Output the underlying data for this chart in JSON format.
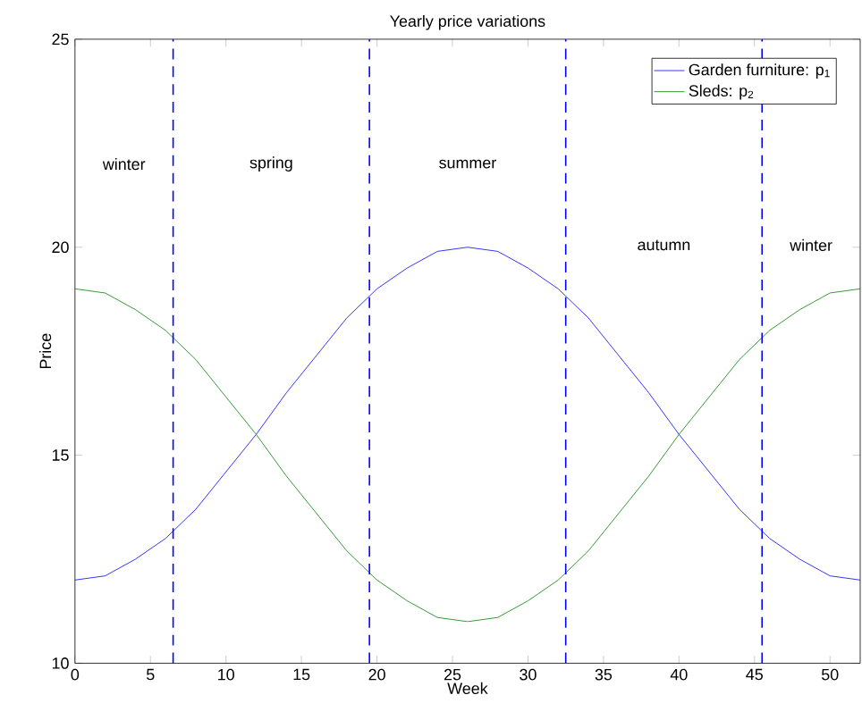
{
  "chart_data": {
    "type": "line",
    "title": "Yearly price variations",
    "xlabel": "Week",
    "ylabel": "Price",
    "x": [
      0,
      2,
      4,
      6,
      8,
      10,
      12,
      14,
      16,
      18,
      20,
      22,
      24,
      26,
      28,
      30,
      32,
      34,
      36,
      38,
      40,
      42,
      44,
      46,
      48,
      50,
      52
    ],
    "series": [
      {
        "name": "Garden furniture: p$_{1}$",
        "color": "#0000ff",
        "values": [
          12,
          12.1,
          12.5,
          13,
          13.7,
          14.6,
          15.5,
          16.5,
          17.4,
          18.3,
          19,
          19.5,
          19.9,
          20,
          19.9,
          19.5,
          19,
          18.3,
          17.4,
          16.5,
          15.5,
          14.6,
          13.7,
          13,
          12.5,
          12.1,
          12
        ]
      },
      {
        "name": "Sleds: p$_{2}$",
        "color": "#008000",
        "values": [
          19,
          18.9,
          18.5,
          18,
          17.3,
          16.4,
          15.5,
          14.5,
          13.6,
          12.7,
          12,
          11.5,
          11.1,
          11,
          11.1,
          11.5,
          12,
          12.7,
          13.6,
          14.5,
          15.5,
          16.4,
          17.3,
          18,
          18.5,
          18.9,
          19
        ]
      }
    ],
    "xlim": [
      0,
      52
    ],
    "ylim": [
      10,
      25
    ],
    "xticks": [
      0,
      5,
      10,
      15,
      20,
      25,
      30,
      35,
      40,
      45,
      50
    ],
    "yticks": [
      10,
      15,
      20,
      25
    ],
    "ref_lines": [
      {
        "axis": "x",
        "value": 6.5,
        "color": "#0000ff",
        "line_style": "dashed"
      },
      {
        "axis": "x",
        "value": 19.5,
        "color": "#0000ff",
        "line_style": "dashed"
      },
      {
        "axis": "x",
        "value": 32.5,
        "color": "#0000ff",
        "line_style": "dashed"
      },
      {
        "axis": "x",
        "value": 45.5,
        "color": "#0000ff",
        "line_style": "dashed"
      }
    ],
    "annotations": [
      "winter",
      "spring",
      "summer",
      "autumn",
      "winter"
    ],
    "legend": "top right",
    "grid": false,
    "marker": "none",
    "line_style": "solid"
  }
}
